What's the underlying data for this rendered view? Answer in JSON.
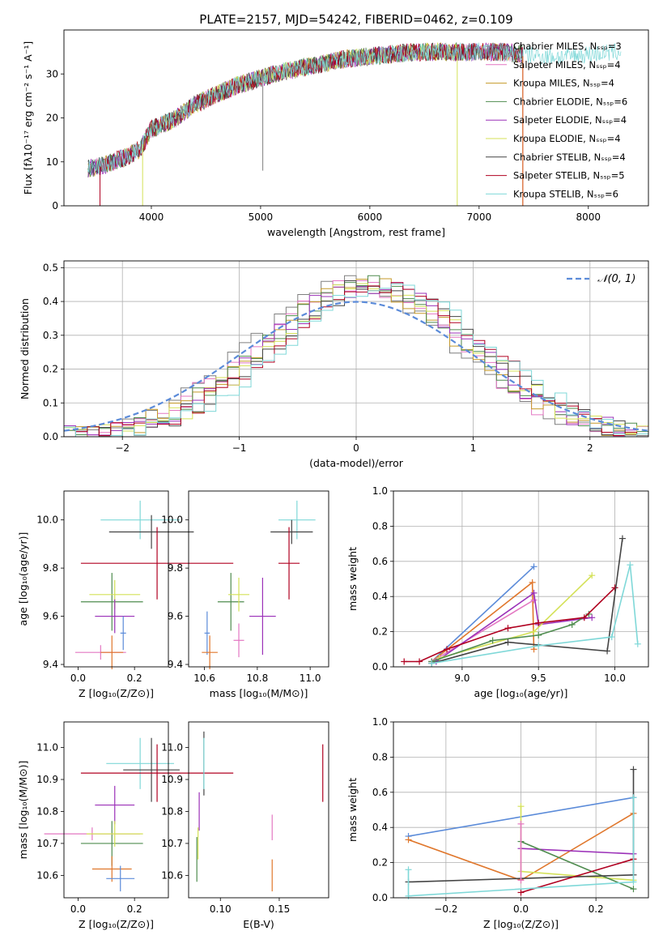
{
  "page": {
    "title": "PLATE=2157, MJD=54242, FIBERID=0462, z=0.109"
  },
  "colors": {
    "chabrier_miles": "#7f7f7f",
    "salpeter_miles": "#e377c2",
    "kroupa_miles": "#c59a2a",
    "chabrier_elodie": "#4f8c4f",
    "salpeter_elodie": "#9b30b8",
    "kroupa_elodie": "#d4e157",
    "chabrier_stelib": "#444444",
    "salpeter_stelib": "#b00020",
    "kroupa_stelib": "#7fd8d8",
    "blue": "#5b8bd9",
    "orange": "#e0772c",
    "dashed": "#5b8bd9"
  },
  "chart_data": [
    {
      "id": "spectrum",
      "type": "line",
      "title": "PLATE=2157, MJD=54242, FIBERID=0462, z=0.109",
      "xlabel": "wavelength [Angstrom, rest frame]",
      "ylabel": "Flux [fλ10⁻¹⁷ erg cm⁻² s⁻¹ A⁻¹]",
      "xlim": [
        3200,
        8550
      ],
      "ylim": [
        0,
        40
      ],
      "xticks": [
        4000,
        5000,
        6000,
        7000,
        8000
      ],
      "yticks": [
        0,
        10,
        20,
        30
      ],
      "grid": false,
      "legend_position": "top-right",
      "legend": [
        {
          "label": "Chabrier MILES, Nₛₛₚ=3",
          "color": "#7f7f7f"
        },
        {
          "label": "Salpeter MILES, Nₛₛₚ=4",
          "color": "#e377c2"
        },
        {
          "label": "Kroupa MILES, Nₛₛₚ=4",
          "color": "#c59a2a"
        },
        {
          "label": "Chabrier ELODIE, Nₛₛₚ=6",
          "color": "#4f8c4f"
        },
        {
          "label": "Salpeter ELODIE, Nₛₛₚ=4",
          "color": "#9b30b8"
        },
        {
          "label": "Kroupa ELODIE, Nₛₛₚ=4",
          "color": "#d4e157"
        },
        {
          "label": "Chabrier STELIB, Nₛₛₚ=4",
          "color": "#444444"
        },
        {
          "label": "Salpeter STELIB, Nₛₛₚ=5",
          "color": "#b00020"
        },
        {
          "label": "Kroupa STELIB, Nₛₛₚ=6",
          "color": "#7fd8d8"
        }
      ],
      "continuum": [
        [
          3400,
          8.5
        ],
        [
          3500,
          8.8
        ],
        [
          3600,
          9.5
        ],
        [
          3700,
          10.5
        ],
        [
          3800,
          11.5
        ],
        [
          3900,
          13
        ],
        [
          4000,
          17.5
        ],
        [
          4200,
          19.5
        ],
        [
          4400,
          23
        ],
        [
          4600,
          25.5
        ],
        [
          4800,
          27.5
        ],
        [
          5000,
          29
        ],
        [
          5200,
          30.5
        ],
        [
          5400,
          31.5
        ],
        [
          5600,
          32.5
        ],
        [
          5800,
          33.5
        ],
        [
          6000,
          34
        ],
        [
          6200,
          34.5
        ],
        [
          6400,
          35
        ],
        [
          6600,
          35
        ],
        [
          6800,
          35
        ],
        [
          7000,
          35
        ],
        [
          7200,
          35
        ],
        [
          7400,
          34.5
        ],
        [
          7600,
          34
        ],
        [
          7800,
          34
        ],
        [
          8000,
          34.5
        ],
        [
          8300,
          35
        ]
      ],
      "series_ranges": [
        {
          "color": "#7f7f7f",
          "xmin": 3420,
          "xmax": 7400
        },
        {
          "color": "#e377c2",
          "xmin": 3420,
          "xmax": 7400
        },
        {
          "color": "#c59a2a",
          "xmin": 3420,
          "xmax": 7400
        },
        {
          "color": "#4f8c4f",
          "xmin": 3420,
          "xmax": 7400
        },
        {
          "color": "#9b30b8",
          "xmin": 3420,
          "xmax": 7400
        },
        {
          "color": "#d4e157",
          "xmin": 3920,
          "xmax": 6800
        },
        {
          "color": "#444444",
          "xmin": 3420,
          "xmax": 7400
        },
        {
          "color": "#b00020",
          "xmin": 3530,
          "xmax": 7400
        },
        {
          "color": "#7fd8d8",
          "xmin": 3420,
          "xmax": 8300
        }
      ]
    },
    {
      "id": "residuals",
      "type": "histogram",
      "xlabel": "(data-model)/error",
      "ylabel": "Normed distribution",
      "xlim": [
        -2.5,
        2.5
      ],
      "ylim": [
        0,
        0.52
      ],
      "xticks": [
        -2,
        -1,
        0,
        1,
        2
      ],
      "yticks": [
        0.0,
        0.1,
        0.2,
        0.3,
        0.4,
        0.5
      ],
      "grid": true,
      "legend_position": "top-right",
      "legend": [
        {
          "label": "𝒩(0, 1)",
          "color": "#5b8bd9",
          "style": "dashed"
        }
      ],
      "bin_width": 0.1,
      "normal_curve": {
        "mean": 0,
        "std": 1
      }
    },
    {
      "id": "age_vs_Z",
      "type": "errorbar",
      "xlabel": "Z [log₁₀(Z/Z⊙)]",
      "ylabel": "age  [log₁₀(age/yr)]",
      "xlim": [
        -0.05,
        0.32
      ],
      "ylim": [
        9.39,
        10.12
      ],
      "xticks": [
        0.0,
        0.2
      ],
      "yticks": [
        9.4,
        9.6,
        9.8,
        10.0
      ],
      "grid": false,
      "points": [
        {
          "color": "#7fd8d8",
          "x": 0.22,
          "xerr": 0.14,
          "y": 10.0,
          "yerr": 0.08
        },
        {
          "color": "#444444",
          "x": 0.26,
          "xerr": 0.15,
          "y": 9.95,
          "yerr": 0.07
        },
        {
          "color": "#b00020",
          "x": 0.28,
          "xerr": 0.27,
          "y": 9.82,
          "yerr": 0.15
        },
        {
          "color": "#4f8c4f",
          "x": 0.12,
          "xerr": 0.11,
          "y": 9.66,
          "yerr": 0.12
        },
        {
          "color": "#d4e157",
          "x": 0.13,
          "xerr": 0.09,
          "y": 9.69,
          "yerr": 0.06
        },
        {
          "color": "#9b30b8",
          "x": 0.13,
          "xerr": 0.07,
          "y": 9.6,
          "yerr": 0.07
        },
        {
          "color": "#5b8bd9",
          "x": 0.16,
          "xerr": 0.01,
          "y": 9.53,
          "yerr": 0.07
        },
        {
          "color": "#e377c2",
          "x": 0.08,
          "xerr": 0.09,
          "y": 9.45,
          "yerr": 0.03
        },
        {
          "color": "#e0772c",
          "x": 0.12,
          "xerr": 0.04,
          "y": 9.45,
          "yerr": 0.07
        }
      ]
    },
    {
      "id": "age_vs_mass",
      "type": "errorbar",
      "xlabel": "mass [log₁₀(M/M⊙)]",
      "ylabel": "",
      "xlim": [
        10.54,
        11.07
      ],
      "ylim": [
        9.39,
        10.12
      ],
      "xticks": [
        10.6,
        10.8,
        11.0
      ],
      "yticks": [
        9.4,
        9.6,
        9.8,
        10.0
      ],
      "grid": false,
      "points": [
        {
          "color": "#7fd8d8",
          "x": 10.95,
          "xerr": 0.07,
          "y": 10.0,
          "yerr": 0.08
        },
        {
          "color": "#444444",
          "x": 10.93,
          "xerr": 0.08,
          "y": 9.95,
          "yerr": 0.05
        },
        {
          "color": "#b00020",
          "x": 10.92,
          "xerr": 0.04,
          "y": 9.82,
          "yerr": 0.15
        },
        {
          "color": "#4f8c4f",
          "x": 10.7,
          "xerr": 0.05,
          "y": 9.66,
          "yerr": 0.12
        },
        {
          "color": "#d4e157",
          "x": 10.73,
          "xerr": 0.04,
          "y": 9.69,
          "yerr": 0.07
        },
        {
          "color": "#9b30b8",
          "x": 10.82,
          "xerr": 0.05,
          "y": 9.6,
          "yerr": 0.16
        },
        {
          "color": "#5b8bd9",
          "x": 10.61,
          "xerr": 0.01,
          "y": 9.53,
          "yerr": 0.09
        },
        {
          "color": "#e377c2",
          "x": 10.73,
          "xerr": 0.02,
          "y": 9.5,
          "yerr": 0.07
        },
        {
          "color": "#e0772c",
          "x": 10.62,
          "xerr": 0.03,
          "y": 9.45,
          "yerr": 0.07
        }
      ]
    },
    {
      "id": "weight_vs_age",
      "type": "line",
      "xlabel": "age  [log₁₀(age/yr)]",
      "ylabel": "mass weight",
      "xlim": [
        8.55,
        10.22
      ],
      "ylim": [
        0,
        1.0
      ],
      "xticks": [
        9.0,
        9.5,
        10.0
      ],
      "yticks": [
        0.0,
        0.2,
        0.4,
        0.6,
        0.8,
        1.0
      ],
      "grid": true,
      "series": [
        {
          "color": "#5b8bd9",
          "x": [
            8.8,
            9.47
          ],
          "y": [
            0.03,
            0.57
          ]
        },
        {
          "color": "#e0772c",
          "x": [
            8.8,
            9.46,
            9.47
          ],
          "y": [
            0.03,
            0.48,
            0.1
          ]
        },
        {
          "color": "#e377c2",
          "x": [
            8.8,
            9.47
          ],
          "y": [
            0.03,
            0.38
          ]
        },
        {
          "color": "#9b30b8",
          "x": [
            8.83,
            9.47,
            9.5,
            9.85
          ],
          "y": [
            0.03,
            0.42,
            0.24,
            0.28
          ]
        },
        {
          "color": "#d4e157",
          "x": [
            8.85,
            9.47,
            9.85
          ],
          "y": [
            0.05,
            0.2,
            0.52
          ]
        },
        {
          "color": "#4f8c4f",
          "x": [
            8.8,
            9.2,
            9.5,
            9.72,
            9.83
          ],
          "y": [
            0.03,
            0.15,
            0.18,
            0.24,
            0.3
          ]
        },
        {
          "color": "#b00020",
          "x": [
            8.62,
            8.72,
            8.9,
            9.3,
            9.5,
            9.8,
            10.0
          ],
          "y": [
            0.03,
            0.03,
            0.1,
            0.22,
            0.25,
            0.28,
            0.45
          ]
        },
        {
          "color": "#444444",
          "x": [
            8.8,
            9.3,
            9.95,
            10.05
          ],
          "y": [
            0.02,
            0.14,
            0.09,
            0.73
          ]
        },
        {
          "color": "#7fd8d8",
          "x": [
            8.8,
            9.5,
            9.98,
            10.1,
            10.15
          ],
          "y": [
            0.02,
            0.12,
            0.17,
            0.58,
            0.13
          ]
        }
      ]
    },
    {
      "id": "mass_vs_Z",
      "type": "errorbar",
      "xlabel": "Z [log₁₀(Z/Z⊙)]",
      "ylabel": "mass [log₁₀(M/M⊙)]",
      "xlim": [
        -0.05,
        0.32
      ],
      "ylim": [
        10.53,
        11.08
      ],
      "xticks": [
        0.0,
        0.2
      ],
      "yticks": [
        10.6,
        10.7,
        10.8,
        10.9,
        11.0
      ],
      "grid": false,
      "points": [
        {
          "color": "#7fd8d8",
          "x": 0.22,
          "xerr": 0.12,
          "y": 10.95,
          "yerr": 0.08
        },
        {
          "color": "#444444",
          "x": 0.26,
          "xerr": 0.1,
          "y": 10.93,
          "yerr": 0.1
        },
        {
          "color": "#b00020",
          "x": 0.28,
          "xerr": 0.27,
          "y": 10.92,
          "yerr": 0.09
        },
        {
          "color": "#9b30b8",
          "x": 0.13,
          "xerr": 0.07,
          "y": 10.82,
          "yerr": 0.06
        },
        {
          "color": "#4f8c4f",
          "x": 0.12,
          "xerr": 0.11,
          "y": 10.7,
          "yerr": 0.07
        },
        {
          "color": "#e377c2",
          "x": 0.05,
          "xerr": 0.17,
          "y": 10.73,
          "yerr": 0.02
        },
        {
          "color": "#d4e157",
          "x": 0.13,
          "xerr": 0.1,
          "y": 10.73,
          "yerr": 0.04
        },
        {
          "color": "#e0772c",
          "x": 0.12,
          "xerr": 0.07,
          "y": 10.62,
          "yerr": 0.04
        },
        {
          "color": "#5b8bd9",
          "x": 0.15,
          "xerr": 0.05,
          "y": 10.59,
          "yerr": 0.04
        }
      ]
    },
    {
      "id": "mass_vs_EBV",
      "type": "errorbar",
      "xlabel": "E(B-V)",
      "ylabel": "",
      "xlim": [
        0.073,
        0.192
      ],
      "ylim": [
        10.53,
        11.08
      ],
      "xticks": [
        0.1,
        0.15
      ],
      "yticks": [
        10.6,
        10.7,
        10.8,
        10.9,
        11.0
      ],
      "grid": false,
      "points": [
        {
          "color": "#444444",
          "x": 0.086,
          "xerr": 0,
          "y": 10.95,
          "yerr": 0.1
        },
        {
          "color": "#7fd8d8",
          "x": 0.086,
          "xerr": 0,
          "y": 10.95,
          "yerr": 0.08
        },
        {
          "color": "#9b30b8",
          "x": 0.082,
          "xerr": 0,
          "y": 10.8,
          "yerr": 0.06
        },
        {
          "color": "#4f8c4f",
          "x": 0.08,
          "xerr": 0,
          "y": 10.65,
          "yerr": 0.07
        },
        {
          "color": "#d4e157",
          "x": 0.081,
          "xerr": 0,
          "y": 10.7,
          "yerr": 0.05
        },
        {
          "color": "#e377c2",
          "x": 0.144,
          "xerr": 0,
          "y": 10.75,
          "yerr": 0.04
        },
        {
          "color": "#e0772c",
          "x": 0.144,
          "xerr": 0,
          "y": 10.6,
          "yerr": 0.05
        },
        {
          "color": "#b00020",
          "x": 0.187,
          "xerr": 0,
          "y": 10.92,
          "yerr": 0.09
        }
      ]
    },
    {
      "id": "weight_vs_Z",
      "type": "line",
      "xlabel": "Z [log₁₀(Z/Z⊙)]",
      "ylabel": "mass weight",
      "xlim": [
        -0.34,
        0.34
      ],
      "ylim": [
        0,
        1.0
      ],
      "xticks": [
        -0.2,
        0.0,
        0.2
      ],
      "yticks": [
        0.0,
        0.2,
        0.4,
        0.6,
        0.8,
        1.0
      ],
      "grid": true,
      "series": [
        {
          "color": "#5b8bd9",
          "x": [
            -0.3,
            0.3
          ],
          "y": [
            0.35,
            0.57
          ]
        },
        {
          "color": "#e0772c",
          "x": [
            -0.3,
            0.0,
            0.3
          ],
          "y": [
            0.33,
            0.1,
            0.48
          ]
        },
        {
          "color": "#9b30b8",
          "x": [
            0.0,
            0.3
          ],
          "y": [
            0.28,
            0.25
          ]
        },
        {
          "color": "#d4e157",
          "x": [
            0.0,
            0.0,
            0.3
          ],
          "y": [
            0.52,
            0.15,
            0.1
          ]
        },
        {
          "color": "#4f8c4f",
          "x": [
            0.0,
            0.3
          ],
          "y": [
            0.32,
            0.05
          ]
        },
        {
          "color": "#444444",
          "x": [
            -0.3,
            0.3,
            0.3
          ],
          "y": [
            0.09,
            0.13,
            0.73
          ]
        },
        {
          "color": "#b00020",
          "x": [
            0.0,
            0.3
          ],
          "y": [
            0.03,
            0.22
          ]
        },
        {
          "color": "#e377c2",
          "x": [
            0.0,
            0.0
          ],
          "y": [
            0.42,
            0.1
          ]
        },
        {
          "color": "#7fd8d8",
          "x": [
            -0.3,
            -0.3,
            0.3,
            0.3
          ],
          "y": [
            0.16,
            0.01,
            0.09,
            0.57
          ]
        }
      ]
    }
  ]
}
